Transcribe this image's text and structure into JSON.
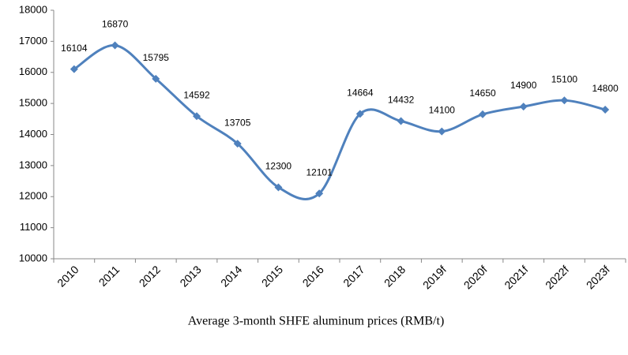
{
  "chart_data": {
    "type": "line",
    "title": "Average 3-month SHFE aluminum prices (RMB/t)",
    "categories": [
      "2010",
      "2011",
      "2012",
      "2013",
      "2014",
      "2015",
      "2016",
      "2017",
      "2018",
      "2019f",
      "2020f",
      "2021f",
      "2022f",
      "2023f"
    ],
    "series": [
      {
        "name": "Average 3-month SHFE aluminum prices",
        "color": "#4f81bd",
        "values": [
          16104,
          16870,
          15795,
          14592,
          13705,
          12300,
          12101,
          14664,
          14432,
          14100,
          14650,
          14900,
          15100,
          14800
        ]
      }
    ],
    "ylim": [
      10000,
      18000
    ],
    "yticks": [
      10000,
      11000,
      12000,
      13000,
      14000,
      15000,
      16000,
      17000,
      18000
    ],
    "grid": false
  }
}
